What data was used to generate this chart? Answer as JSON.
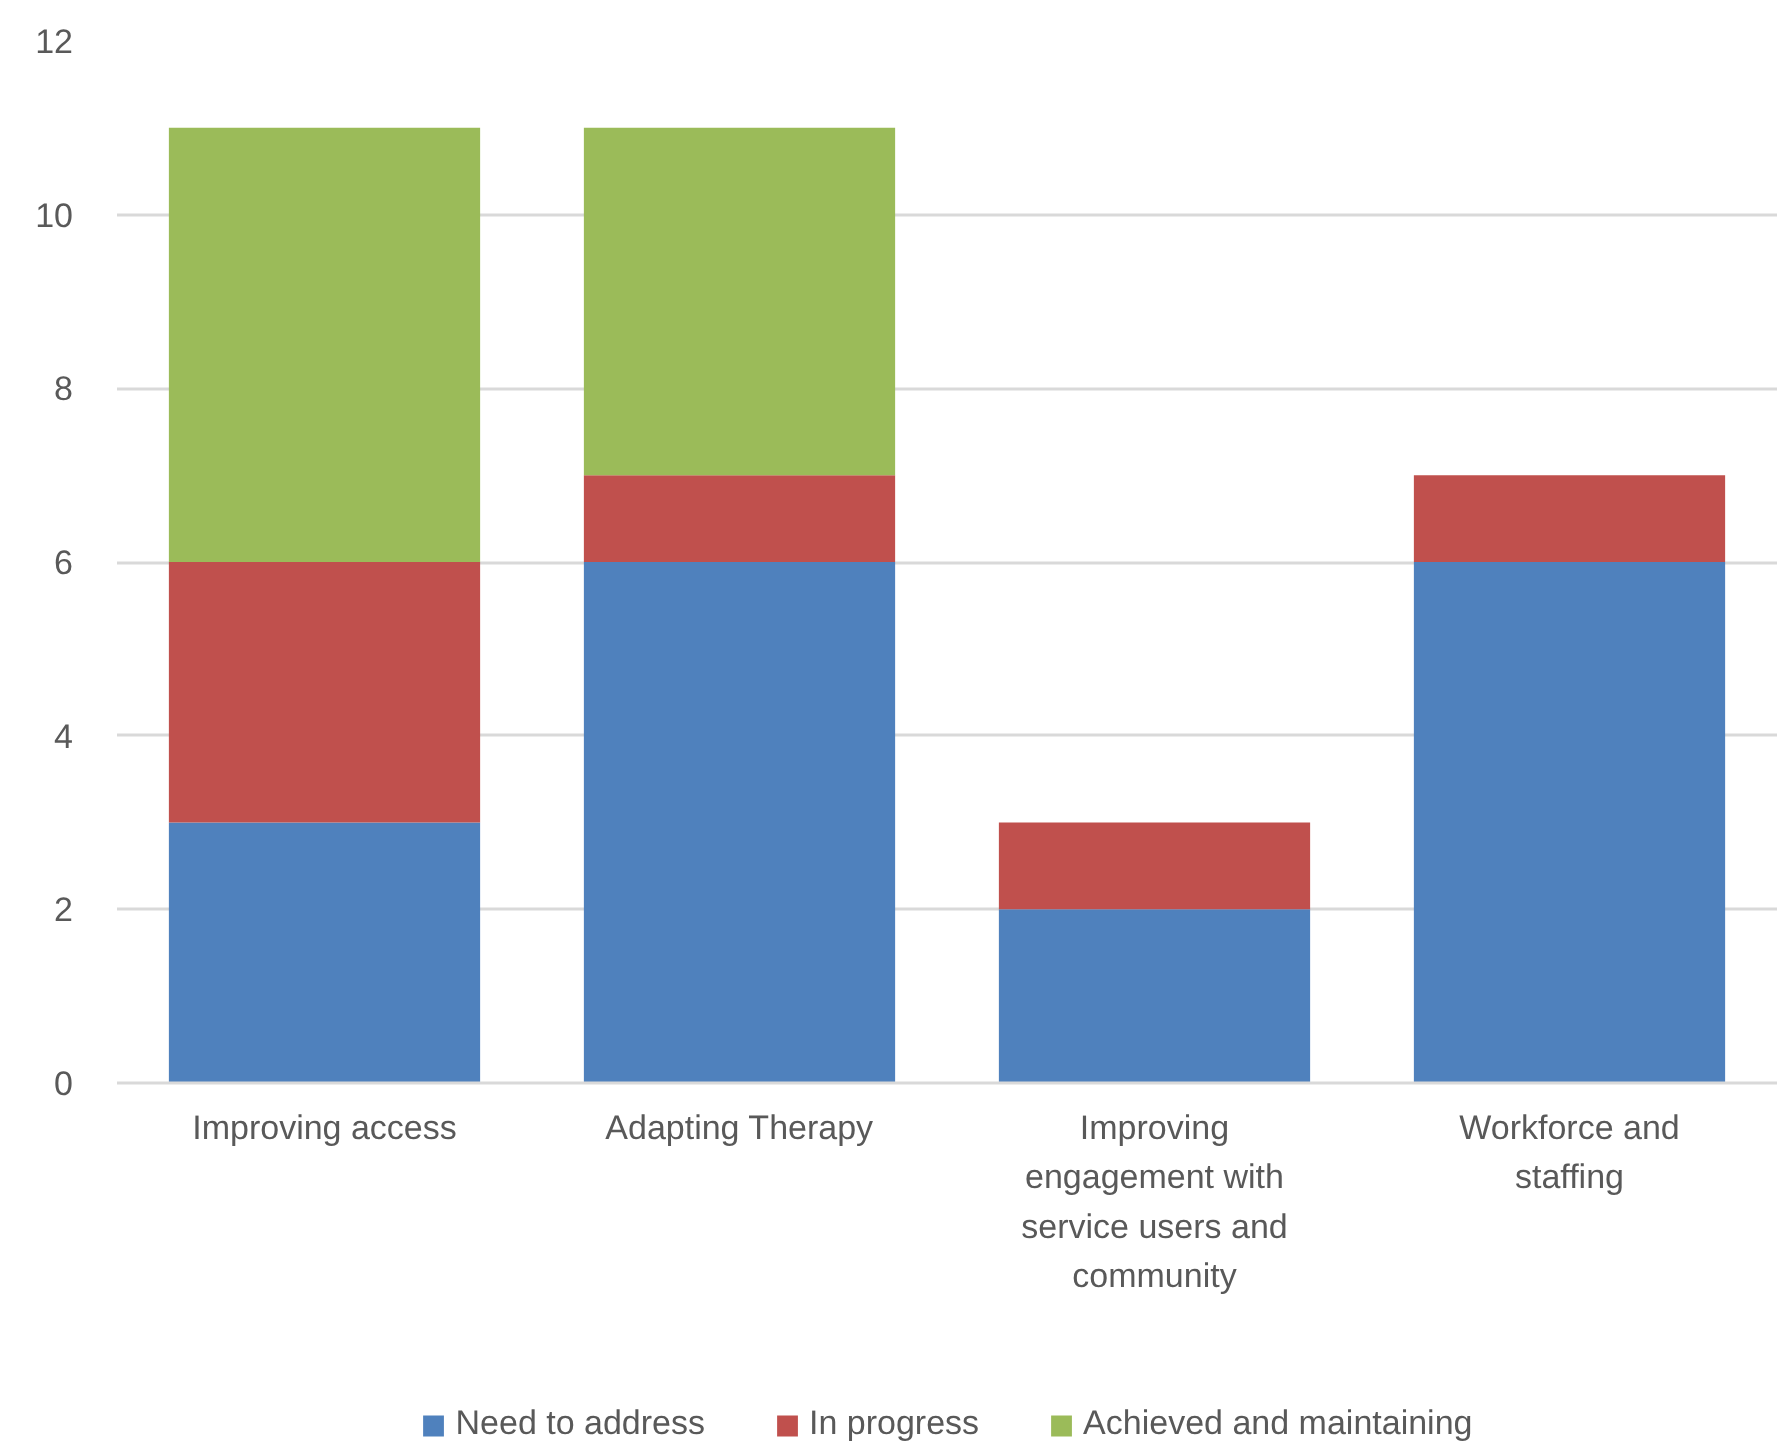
{
  "chart_data": {
    "type": "bar",
    "stacked": true,
    "categories": [
      "Improving access",
      "Adapting Therapy",
      "Improving engagement with service users and community",
      "Workforce and staffing"
    ],
    "series": [
      {
        "name": "Need to address",
        "color": "#4f81bd",
        "values": [
          3,
          6,
          2,
          6
        ]
      },
      {
        "name": "In progress",
        "color": "#c0504d",
        "values": [
          3,
          1,
          1,
          1
        ]
      },
      {
        "name": "Achieved and maintaining",
        "color": "#9bbb59",
        "values": [
          5,
          4,
          0,
          0
        ]
      }
    ],
    "ylim": [
      0,
      12
    ],
    "yticks": [
      0,
      2,
      4,
      6,
      8,
      10,
      12
    ],
    "grid": "y",
    "legend": "bottom"
  }
}
